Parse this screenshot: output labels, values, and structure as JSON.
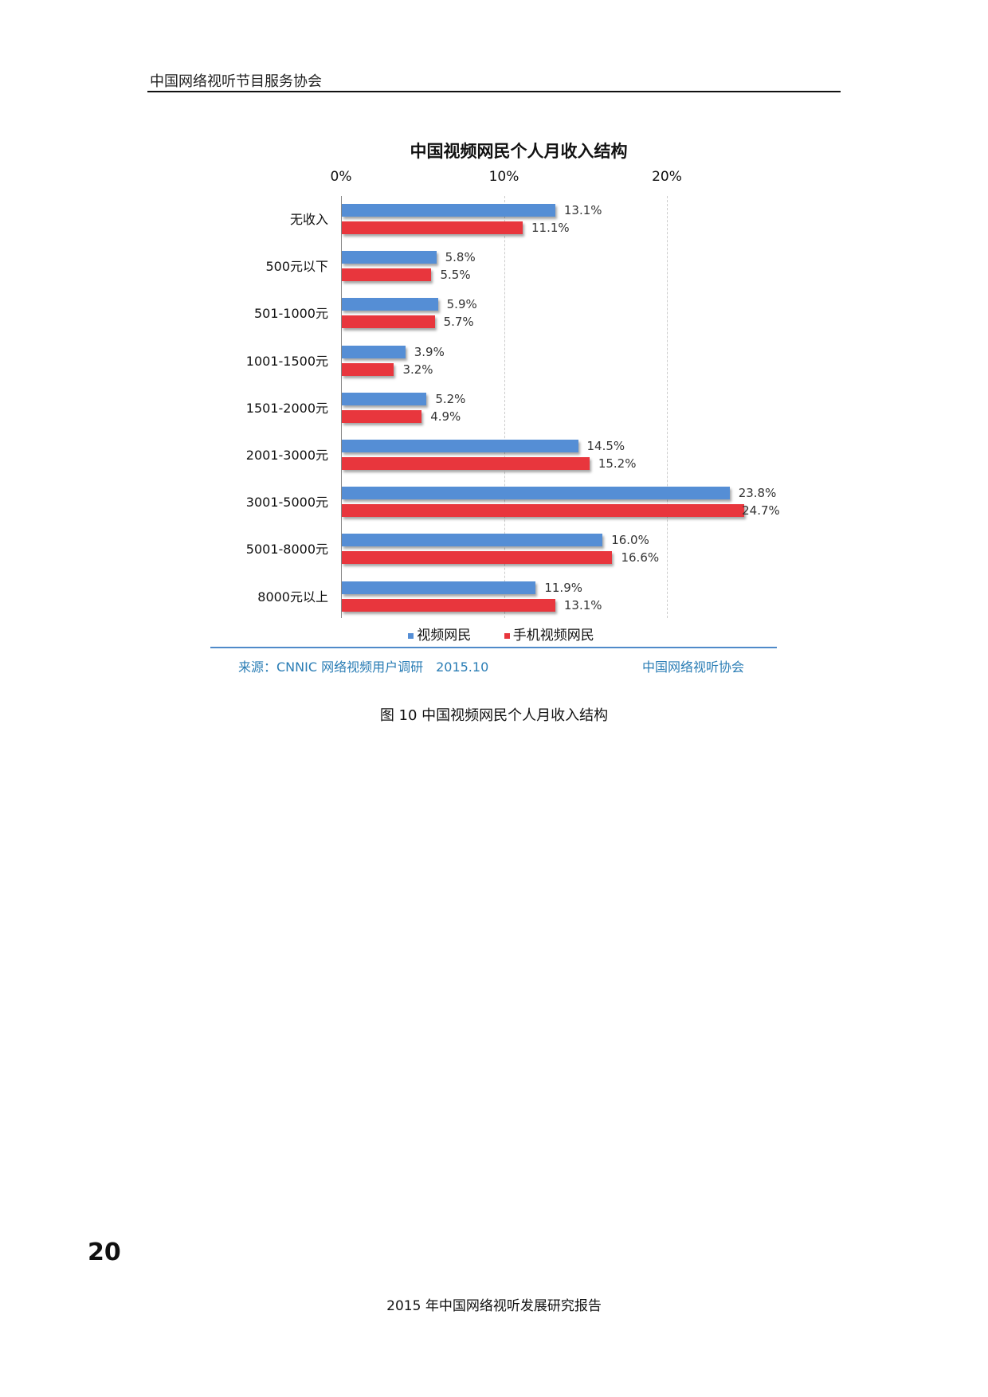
{
  "header": {
    "org": "中国网络视听节目服务协会"
  },
  "chart_data": {
    "type": "bar",
    "orientation": "horizontal",
    "title": "中国视频网民个人月收入结构",
    "categories": [
      "无收入",
      "500元以下",
      "501-1000元",
      "1001-1500元",
      "1501-2000元",
      "2001-3000元",
      "3001-5000元",
      "5001-8000元",
      "8000元以上"
    ],
    "series": [
      {
        "name": "视频网民",
        "color": "#558ED5",
        "values": [
          13.1,
          5.8,
          5.9,
          3.9,
          5.2,
          14.5,
          23.8,
          16.0,
          11.9
        ],
        "labels": [
          "13.1%",
          "5.8%",
          "5.9%",
          "3.9%",
          "5.2%",
          "14.5%",
          "23.8%",
          "16.0%",
          "11.9%"
        ]
      },
      {
        "name": "手机视频网民",
        "color": "#E8363D",
        "values": [
          11.1,
          5.5,
          5.7,
          3.2,
          4.9,
          15.2,
          24.7,
          16.6,
          13.1
        ],
        "labels": [
          "11.1%",
          "5.5%",
          "5.7%",
          "3.2%",
          "4.9%",
          "15.2%",
          "24.7%",
          "16.6%",
          "13.1%"
        ]
      }
    ],
    "xticks": [
      "0%",
      "10%",
      "20%"
    ],
    "xlim": [
      0,
      30
    ],
    "axis_position": "top",
    "legend": "bottom",
    "grid": true
  },
  "source": {
    "left": "来源：CNNIC 网络视频用户调研　2015.10",
    "right": "中国网络视听协会"
  },
  "caption": "图 10 中国视频网民个人月收入结构",
  "page_number": "20",
  "footer": "2015 年中国网络视听发展研究报告"
}
